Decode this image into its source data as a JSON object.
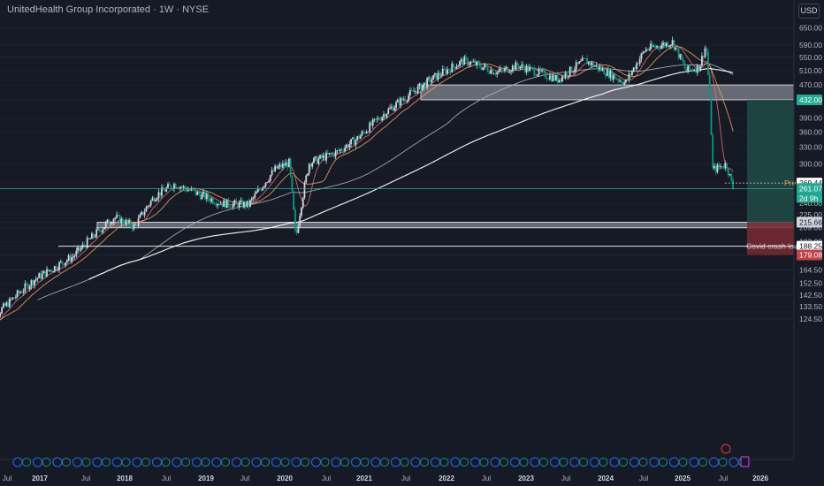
{
  "header": {
    "symbol_label": "UnitedHealth Group Incorporated · 1W · NYSE",
    "currency_button": "USD"
  },
  "colors": {
    "background": "#161a25",
    "up_candle": "#d1d4dc",
    "down_candle": "#089981",
    "ma_fast": "#e06c75",
    "ma_mid": "#f0a060",
    "ma_200": "#aeb2bb",
    "ma_slow": "#ffffff",
    "price_line": "#22ab94",
    "profit_zone": "#1f4f49",
    "loss_zone": "#7a2a33"
  },
  "chart_data": {
    "type": "candlestick",
    "scale": "log",
    "y_ticks": [
      "650.00",
      "590.00",
      "550.00",
      "510.00",
      "470.00",
      "432.00",
      "390.00",
      "360.00",
      "330.00",
      "300.00",
      "269.44",
      "261.07",
      "240.00",
      "225.00",
      "215.66",
      "209.00",
      "193.00",
      "188.25",
      "179.08",
      "164.50",
      "152.50",
      "142.50",
      "133.50",
      "124.50"
    ],
    "x_ticks": [
      "Jul",
      "2017",
      "Jul",
      "2018",
      "Jul",
      "2019",
      "Jul",
      "2020",
      "Jul",
      "2021",
      "Jul",
      "2022",
      "Jul",
      "2023",
      "Jul",
      "2024",
      "Jul",
      "2025",
      "Jul",
      "2026"
    ],
    "x_tick_years": [
      "2017",
      "2018",
      "2019",
      "2020",
      "2021",
      "2022",
      "2023",
      "2024",
      "2025",
      "2026"
    ],
    "price_series_anchors": [
      [
        "2016-05",
        120
      ],
      [
        "2016-12",
        155
      ],
      [
        "2017-06",
        178
      ],
      [
        "2017-12",
        222
      ],
      [
        "2018-03",
        210
      ],
      [
        "2018-06",
        250
      ],
      [
        "2018-09",
        268
      ],
      [
        "2018-12",
        255
      ],
      [
        "2019-04",
        240
      ],
      [
        "2019-08",
        238
      ],
      [
        "2019-12",
        292
      ],
      [
        "2020-02",
        302
      ],
      [
        "2020-03",
        195
      ],
      [
        "2020-05",
        302
      ],
      [
        "2020-09",
        320
      ],
      [
        "2020-12",
        345
      ],
      [
        "2021-05",
        410
      ],
      [
        "2021-12",
        495
      ],
      [
        "2022-04",
        540
      ],
      [
        "2022-09",
        505
      ],
      [
        "2022-12",
        525
      ],
      [
        "2023-06",
        485
      ],
      [
        "2023-10",
        540
      ],
      [
        "2024-04",
        475
      ],
      [
        "2024-07",
        575
      ],
      [
        "2024-11",
        600
      ],
      [
        "2025-01",
        510
      ],
      [
        "2025-03",
        520
      ],
      [
        "2025-04",
        590
      ],
      [
        "2025-05",
        290
      ],
      [
        "2025-07",
        300
      ],
      [
        "2025-08",
        262
      ]
    ],
    "horizontal_levels": [
      {
        "label": "Covid crash low",
        "value": 188.25
      }
    ],
    "zones": [
      {
        "from": 432.0,
        "to": 470.0
      },
      {
        "from": 209.0,
        "to": 215.66
      }
    ],
    "position": {
      "entry": 215.66,
      "target": 432.0,
      "stop": 179.08
    },
    "current_price": 261.07,
    "premarket_price": 269.44,
    "premarket_label": "Pre",
    "countdown": "2d 9h"
  }
}
